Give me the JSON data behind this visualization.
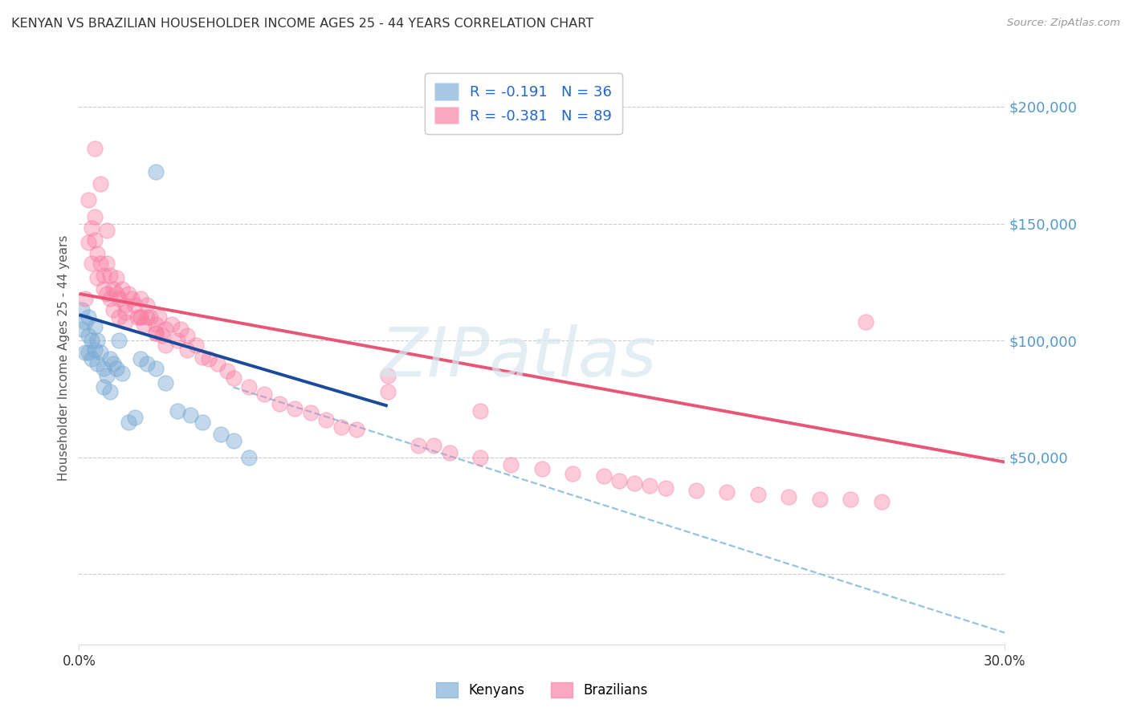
{
  "title": "KENYAN VS BRAZILIAN HOUSEHOLDER INCOME AGES 25 - 44 YEARS CORRELATION CHART",
  "source": "Source: ZipAtlas.com",
  "ylabel": "Householder Income Ages 25 - 44 years",
  "yticks": [
    0,
    50000,
    100000,
    150000,
    200000
  ],
  "ytick_labels": [
    "",
    "$50,000",
    "$100,000",
    "$150,000",
    "$200,000"
  ],
  "xtick_positions": [
    0.0,
    0.3
  ],
  "xtick_labels": [
    "0.0%",
    "30.0%"
  ],
  "xmin": 0.0,
  "xmax": 0.3,
  "ymin": -30000,
  "ymax": 215000,
  "kenyan_color": "#7AAAD4",
  "brazilian_color": "#F87CA0",
  "kenyan_line_color": "#1A4A9B",
  "brazilian_line_color": "#E85577",
  "dashed_line_color": "#8BBCDD",
  "kenyan_R": -0.191,
  "kenyan_N": 36,
  "brazilian_R": -0.381,
  "brazilian_N": 89,
  "watermark": "ZIPatlas",
  "legend_label_kenyan": "Kenyans",
  "legend_label_brazilian": "Brazilians",
  "right_axis_color": "#5599CC",
  "kenyan_trend_x0": 0.0,
  "kenyan_trend_y0": 111000,
  "kenyan_trend_x1": 0.1,
  "kenyan_trend_y1": 72000,
  "brazilian_trend_x0": 0.0,
  "brazilian_trend_y0": 120000,
  "brazilian_trend_x1": 0.3,
  "brazilian_trend_y1": 48000,
  "dashed_trend_x0": 0.05,
  "dashed_trend_y0": 80000,
  "dashed_trend_x1": 0.3,
  "dashed_trend_y1": -25000,
  "kenyan_pts": [
    [
      0.001,
      113000
    ],
    [
      0.001,
      105000
    ],
    [
      0.002,
      108000
    ],
    [
      0.002,
      95000
    ],
    [
      0.003,
      110000
    ],
    [
      0.003,
      102000
    ],
    [
      0.003,
      95000
    ],
    [
      0.004,
      100000
    ],
    [
      0.004,
      92000
    ],
    [
      0.005,
      106000
    ],
    [
      0.005,
      96000
    ],
    [
      0.006,
      100000
    ],
    [
      0.006,
      90000
    ],
    [
      0.007,
      95000
    ],
    [
      0.008,
      80000
    ],
    [
      0.008,
      88000
    ],
    [
      0.009,
      85000
    ],
    [
      0.01,
      78000
    ],
    [
      0.01,
      92000
    ],
    [
      0.011,
      90000
    ],
    [
      0.012,
      88000
    ],
    [
      0.013,
      100000
    ],
    [
      0.014,
      86000
    ],
    [
      0.016,
      65000
    ],
    [
      0.018,
      67000
    ],
    [
      0.02,
      92000
    ],
    [
      0.022,
      90000
    ],
    [
      0.025,
      88000
    ],
    [
      0.025,
      172000
    ],
    [
      0.028,
      82000
    ],
    [
      0.032,
      70000
    ],
    [
      0.036,
      68000
    ],
    [
      0.04,
      65000
    ],
    [
      0.046,
      60000
    ],
    [
      0.05,
      57000
    ],
    [
      0.055,
      50000
    ]
  ],
  "brazilian_pts": [
    [
      0.002,
      118000
    ],
    [
      0.003,
      142000
    ],
    [
      0.003,
      160000
    ],
    [
      0.004,
      148000
    ],
    [
      0.004,
      133000
    ],
    [
      0.005,
      153000
    ],
    [
      0.005,
      143000
    ],
    [
      0.006,
      137000
    ],
    [
      0.006,
      127000
    ],
    [
      0.007,
      133000
    ],
    [
      0.008,
      128000
    ],
    [
      0.008,
      122000
    ],
    [
      0.009,
      133000
    ],
    [
      0.009,
      120000
    ],
    [
      0.01,
      128000
    ],
    [
      0.01,
      118000
    ],
    [
      0.011,
      122000
    ],
    [
      0.011,
      113000
    ],
    [
      0.012,
      127000
    ],
    [
      0.012,
      120000
    ],
    [
      0.013,
      118000
    ],
    [
      0.013,
      110000
    ],
    [
      0.014,
      122000
    ],
    [
      0.015,
      115000
    ],
    [
      0.015,
      108000
    ],
    [
      0.016,
      120000
    ],
    [
      0.017,
      118000
    ],
    [
      0.018,
      115000
    ],
    [
      0.019,
      110000
    ],
    [
      0.02,
      118000
    ],
    [
      0.02,
      110000
    ],
    [
      0.021,
      107000
    ],
    [
      0.022,
      115000
    ],
    [
      0.022,
      110000
    ],
    [
      0.023,
      110000
    ],
    [
      0.025,
      107000
    ],
    [
      0.025,
      103000
    ],
    [
      0.026,
      110000
    ],
    [
      0.027,
      102000
    ],
    [
      0.028,
      105000
    ],
    [
      0.028,
      98000
    ],
    [
      0.03,
      107000
    ],
    [
      0.032,
      100000
    ],
    [
      0.033,
      105000
    ],
    [
      0.035,
      102000
    ],
    [
      0.035,
      96000
    ],
    [
      0.038,
      98000
    ],
    [
      0.04,
      93000
    ],
    [
      0.042,
      92000
    ],
    [
      0.045,
      90000
    ],
    [
      0.048,
      87000
    ],
    [
      0.05,
      84000
    ],
    [
      0.055,
      80000
    ],
    [
      0.06,
      77000
    ],
    [
      0.065,
      73000
    ],
    [
      0.07,
      71000
    ],
    [
      0.075,
      69000
    ],
    [
      0.08,
      66000
    ],
    [
      0.085,
      63000
    ],
    [
      0.09,
      62000
    ],
    [
      0.1,
      85000
    ],
    [
      0.1,
      78000
    ],
    [
      0.11,
      55000
    ],
    [
      0.115,
      55000
    ],
    [
      0.12,
      52000
    ],
    [
      0.13,
      50000
    ],
    [
      0.14,
      47000
    ],
    [
      0.15,
      45000
    ],
    [
      0.16,
      43000
    ],
    [
      0.17,
      42000
    ],
    [
      0.175,
      40000
    ],
    [
      0.18,
      39000
    ],
    [
      0.185,
      38000
    ],
    [
      0.19,
      37000
    ],
    [
      0.2,
      36000
    ],
    [
      0.21,
      35000
    ],
    [
      0.22,
      34000
    ],
    [
      0.23,
      33000
    ],
    [
      0.24,
      32000
    ],
    [
      0.25,
      32000
    ],
    [
      0.255,
      108000
    ],
    [
      0.26,
      31000
    ],
    [
      0.13,
      70000
    ],
    [
      0.02,
      110000
    ],
    [
      0.025,
      103000
    ],
    [
      0.005,
      182000
    ],
    [
      0.007,
      167000
    ],
    [
      0.009,
      147000
    ],
    [
      0.015,
      112000
    ]
  ]
}
